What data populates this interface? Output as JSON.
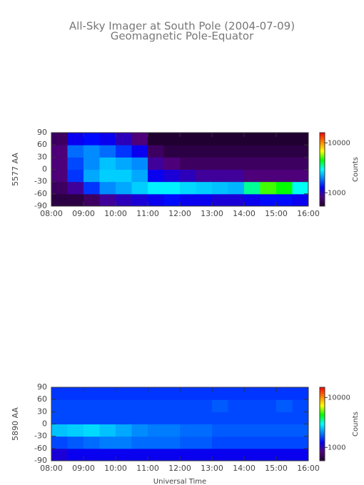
{
  "chart_data": [
    {
      "type": "heatmap",
      "title": "All-Sky Imager at South Pole (2004-07-09)",
      "subtitle": "Geomagnetic Pole-Equator",
      "ylabel": "5577 AA",
      "colorbar_label": "Counts",
      "x": [
        8,
        8.5,
        9,
        9.5,
        10,
        10.5,
        11,
        11.5,
        12,
        12.5,
        13,
        13.5,
        14,
        14.5,
        15,
        15.5
      ],
      "y": [
        -90,
        -60,
        -30,
        0,
        30,
        60
      ],
      "z": [
        [
          600,
          600,
          700,
          900,
          1000,
          1100,
          1200,
          1300,
          1200,
          1200,
          1100,
          1100,
          1200,
          1300,
          1300,
          1200
        ],
        [
          700,
          900,
          1500,
          2000,
          2200,
          2500,
          2800,
          2800,
          2600,
          2500,
          2400,
          2300,
          3500,
          5000,
          4500,
          3000
        ],
        [
          800,
          1500,
          2200,
          2500,
          2500,
          2200,
          1200,
          1100,
          1000,
          900,
          900,
          900,
          800,
          800,
          800,
          800
        ],
        [
          800,
          1600,
          2000,
          2400,
          2200,
          2000,
          900,
          800,
          700,
          700,
          700,
          700,
          700,
          700,
          700,
          700
        ],
        [
          800,
          1800,
          2000,
          1800,
          1500,
          1200,
          700,
          600,
          600,
          600,
          600,
          600,
          600,
          600,
          600,
          600
        ],
        [
          700,
          1200,
          1300,
          1200,
          1000,
          800,
          500,
          400,
          400,
          450,
          450,
          400,
          400,
          400,
          400,
          450
        ]
      ],
      "xlim": [
        8,
        16
      ],
      "xticks": [
        {
          "value": 8,
          "label": "08:00"
        },
        {
          "value": 9,
          "label": "09:00"
        },
        {
          "value": 10,
          "label": "10:00"
        },
        {
          "value": 11,
          "label": "11:00"
        },
        {
          "value": 12,
          "label": "12:00"
        },
        {
          "value": 13,
          "label": "13:00"
        },
        {
          "value": 14,
          "label": "14:00"
        },
        {
          "value": 15,
          "label": "15:00"
        },
        {
          "value": 16,
          "label": "16:00"
        }
      ],
      "ylim": [
        -90,
        90
      ],
      "yticks": [
        90,
        60,
        30,
        0,
        -30,
        -60,
        -90
      ],
      "zlim": [
        540,
        16000
      ],
      "zscale": "log",
      "zticks": [
        1000,
        10000
      ],
      "colormap": [
        "#200030",
        "#500080",
        "#0000ff",
        "#0080ff",
        "#00ffff",
        "#00ff00",
        "#ffff00",
        "#ff8000",
        "#ff0000"
      ]
    },
    {
      "type": "heatmap",
      "ylabel": "5890 AA",
      "colorbar_label": "Counts",
      "xlabel": "Universal Time",
      "x": [
        8,
        8.5,
        9,
        9.5,
        10,
        10.5,
        11,
        11.5,
        12,
        12.5,
        13,
        13.5,
        14,
        14.5,
        15,
        15.5
      ],
      "y": [
        -90,
        -60,
        -30,
        0,
        30,
        60
      ],
      "z": [
        [
          1100,
          1200,
          1200,
          1200,
          1200,
          1200,
          1200,
          1200,
          1200,
          1200,
          1200,
          1200,
          1200,
          1200,
          1200,
          1200
        ],
        [
          1600,
          1700,
          1800,
          1900,
          1900,
          1800,
          1800,
          1800,
          1700,
          1700,
          1600,
          1600,
          1600,
          1600,
          1600,
          1600
        ],
        [
          2400,
          2500,
          2600,
          2400,
          2200,
          2000,
          1900,
          1900,
          1800,
          1800,
          1700,
          1700,
          1700,
          1700,
          1700,
          1700
        ],
        [
          1600,
          1600,
          1600,
          1600,
          1600,
          1600,
          1600,
          1600,
          1600,
          1600,
          1600,
          1600,
          1600,
          1600,
          1600,
          1600
        ],
        [
          1600,
          1600,
          1600,
          1600,
          1600,
          1600,
          1600,
          1600,
          1600,
          1600,
          1700,
          1600,
          1600,
          1600,
          1700,
          1600
        ],
        [
          1500,
          1500,
          1500,
          1500,
          1500,
          1500,
          1500,
          1500,
          1500,
          1500,
          1500,
          1500,
          1500,
          1500,
          1500,
          1500
        ]
      ],
      "xlim": [
        8,
        16
      ],
      "xticks": [
        {
          "value": 8,
          "label": "08:00"
        },
        {
          "value": 9,
          "label": "09:00"
        },
        {
          "value": 10,
          "label": "10:00"
        },
        {
          "value": 11,
          "label": "11:00"
        },
        {
          "value": 12,
          "label": "12:00"
        },
        {
          "value": 13,
          "label": "13:00"
        },
        {
          "value": 14,
          "label": "14:00"
        },
        {
          "value": 15,
          "label": "15:00"
        },
        {
          "value": 16,
          "label": "16:00"
        }
      ],
      "ylim": [
        -90,
        90
      ],
      "yticks": [
        90,
        60,
        30,
        0,
        -30,
        -60,
        -90
      ],
      "zlim": [
        540,
        16000
      ],
      "zscale": "log",
      "zticks": [
        1000,
        10000
      ],
      "colormap": [
        "#200030",
        "#500080",
        "#0000ff",
        "#0080ff",
        "#00ffff",
        "#00ff00",
        "#ffff00",
        "#ff8000",
        "#ff0000"
      ]
    }
  ]
}
